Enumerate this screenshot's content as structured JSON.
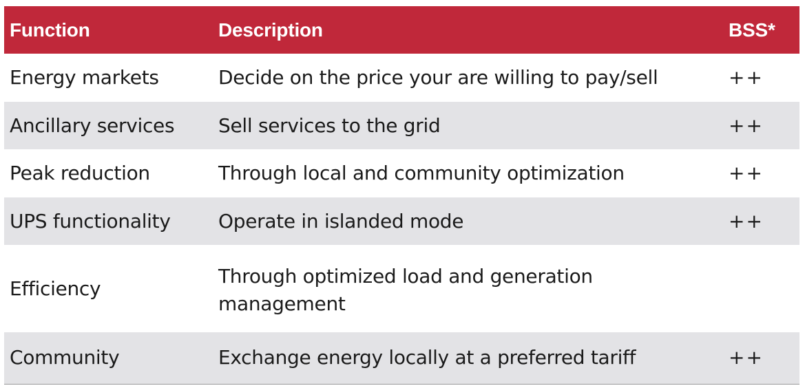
{
  "table": {
    "headers": {
      "function": "Function",
      "description": "Description",
      "bss": "BSS*"
    },
    "rows": [
      {
        "function": "Energy markets",
        "description": "Decide on the price your are willing to pay/sell",
        "bss": "++"
      },
      {
        "function": "Ancillary services",
        "description": "Sell services to the grid",
        "bss": "++"
      },
      {
        "function": "Peak reduction",
        "description": "Through local and community optimization",
        "bss": "++"
      },
      {
        "function": "UPS functionality",
        "description": "Operate in islanded mode",
        "bss": "++"
      },
      {
        "function": "Efficiency",
        "description": "Through optimized load and generation management",
        "bss": ""
      },
      {
        "function": "Community",
        "description": "Exchange energy locally at a preferred tariff",
        "bss": "++"
      }
    ]
  },
  "colors": {
    "header_background": "#c0283a",
    "header_text": "#ffffff",
    "alternate_row": "#e3e3e6"
  }
}
